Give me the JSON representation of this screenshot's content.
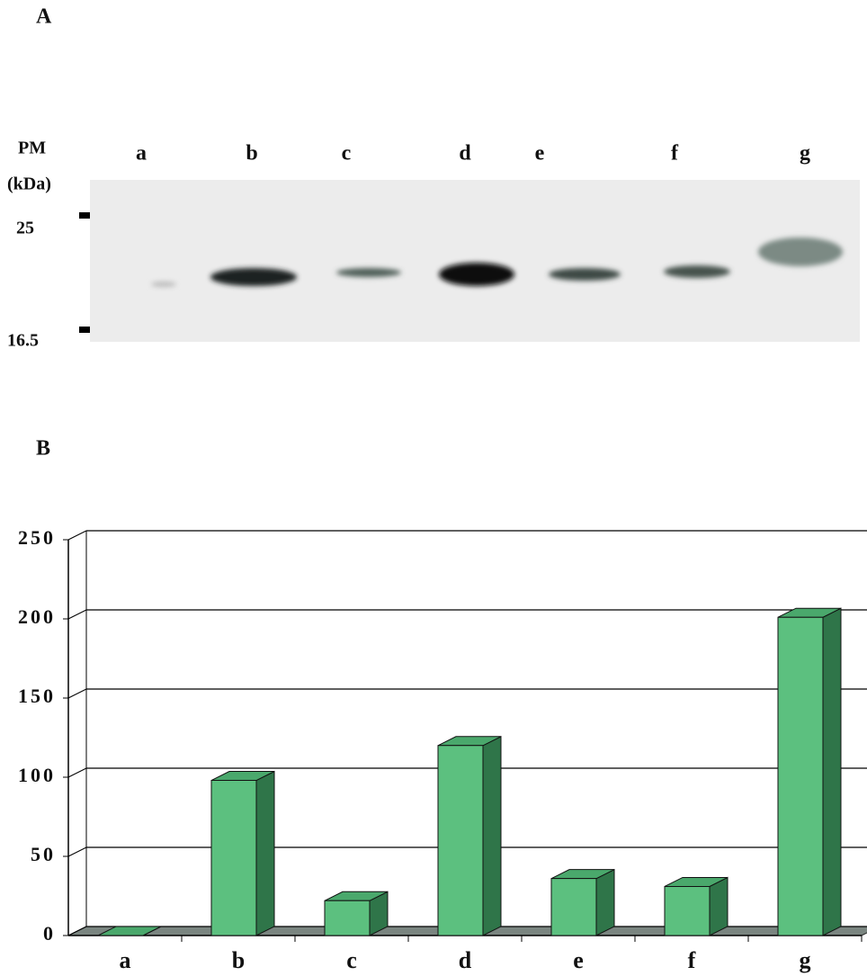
{
  "panel_a": {
    "label": "A",
    "marker_title": "PM",
    "marker_unit": "(kDa)",
    "markers": [
      "25",
      "16.5"
    ],
    "lanes": [
      "a",
      "b",
      "c",
      "d",
      "e",
      "f",
      "g"
    ]
  },
  "panel_b_label": "B",
  "chart_data": {
    "type": "bar3d",
    "categories": [
      "a",
      "b",
      "c",
      "d",
      "e",
      "f",
      "g"
    ],
    "values": [
      0,
      98,
      22,
      120,
      36,
      31,
      201
    ],
    "color": "#5cc07f",
    "ylim": [
      0,
      250
    ],
    "yticks": [
      0,
      50,
      100,
      150,
      200,
      250
    ],
    "grid": true
  }
}
